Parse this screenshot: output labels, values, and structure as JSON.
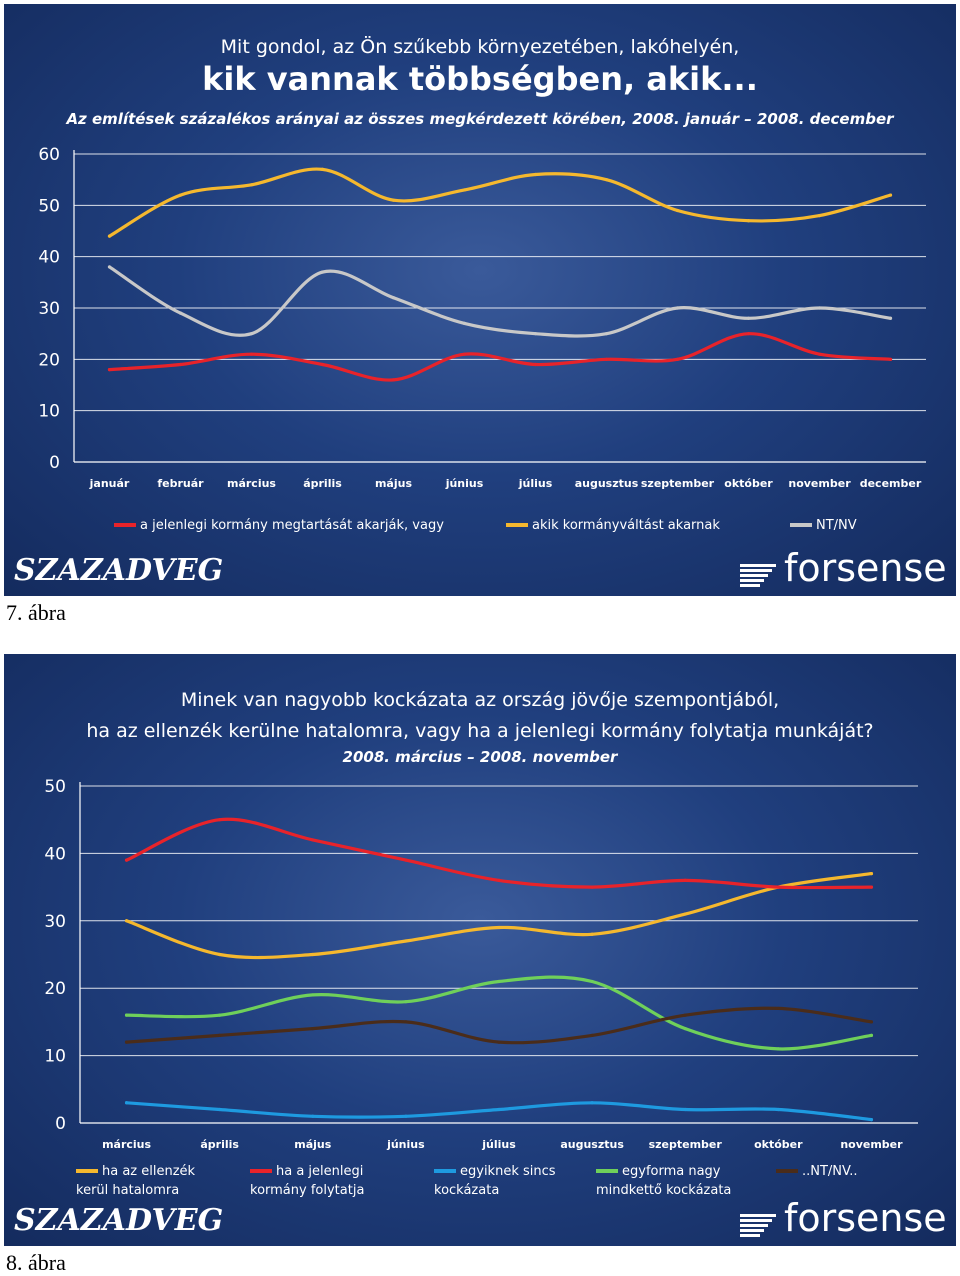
{
  "figures": [
    {
      "caption": "7. ábra",
      "title_lines": [
        "Mit gondol, az Ön szűkebb környezetében, lakóhelyén,",
        "kik vannak többségben, akik..."
      ],
      "subtitle": "Az említések százalékos arányai az összes megkérdezett körében, 2008. január – 2008. december",
      "logo_left": "SZAZADVEG",
      "logo_right": "forsense"
    },
    {
      "caption": "8. ábra",
      "title_lines": [
        "Minek van nagyobb kockázata az ország jövője szempontjából,",
        "ha az ellenzék kerülne hatalomra, vagy ha a jelenlegi kormány folytatja munkáját?"
      ],
      "subtitle": "2008. március – 2008. november",
      "logo_left": "SZAZADVEG",
      "logo_right": "forsense"
    }
  ],
  "chart_data": [
    {
      "type": "line",
      "title": "Mit gondol, az Ön szűkebb környezetében, lakóhelyén, kik vannak többségben, akik...",
      "subtitle": "Az említések százalékos arányai az összes megkérdezett körében, 2008. január – 2008. december",
      "categories": [
        "január",
        "február",
        "március",
        "április",
        "május",
        "június",
        "július",
        "augusztus",
        "szeptember",
        "október",
        "november",
        "december"
      ],
      "yticks": [
        "0",
        "10",
        "20",
        "30",
        "40",
        "50",
        "60"
      ],
      "ylim": [
        0,
        60
      ],
      "grid": true,
      "legend_position": "bottom",
      "series": [
        {
          "name": "a jelenlegi kormány megtartását akarják, vagy",
          "color": "#e8232a",
          "values": [
            18,
            19,
            21,
            19,
            16,
            21,
            19,
            20,
            20,
            25,
            21,
            20
          ]
        },
        {
          "name": "akik kormányváltást akarnak",
          "color": "#f5b82e",
          "values": [
            44,
            52,
            54,
            57,
            51,
            53,
            56,
            55,
            49,
            47,
            48,
            52
          ]
        },
        {
          "name": "NT/NV",
          "color": "#c8c8c8",
          "values": [
            38,
            29,
            25,
            37,
            32,
            27,
            25,
            25,
            30,
            28,
            30,
            28
          ]
        }
      ]
    },
    {
      "type": "line",
      "title": "Minek van nagyobb kockázata az ország jövője szempontjából, ha az ellenzék kerülne hatalomra, vagy ha a jelenlegi kormány folytatja munkáját?",
      "subtitle": "2008. március – 2008. november",
      "categories": [
        "március",
        "április",
        "május",
        "június",
        "július",
        "augusztus",
        "szeptember",
        "október",
        "november"
      ],
      "yticks": [
        "0",
        "10",
        "20",
        "30",
        "40",
        "50"
      ],
      "ylim": [
        0,
        50
      ],
      "grid": true,
      "legend_position": "bottom",
      "series": [
        {
          "name": "ha az ellenzék\nkerül hatalomra",
          "color": "#f5b82e",
          "values": [
            30,
            25,
            25,
            27,
            29,
            28,
            31,
            35,
            37
          ]
        },
        {
          "name": "ha a jelenlegi\nkormány folytatja",
          "color": "#e8232a",
          "values": [
            39,
            45,
            42,
            39,
            36,
            35,
            36,
            35,
            35
          ]
        },
        {
          "name": "egyiknek sincs\nkockázata",
          "color": "#1e9ae0",
          "values": [
            3,
            2,
            1,
            1,
            2,
            3,
            2,
            2,
            0.5
          ]
        },
        {
          "name": "egyforma nagy\nmindkettő kockázata",
          "color": "#6fd05a",
          "values": [
            16,
            16,
            19,
            18,
            21,
            21,
            14,
            11,
            13
          ]
        },
        {
          "name": "..NT/NV..",
          "color": "#4a2c1a",
          "values": [
            12,
            13,
            14,
            15,
            12,
            13,
            16,
            17,
            15
          ]
        }
      ]
    }
  ]
}
